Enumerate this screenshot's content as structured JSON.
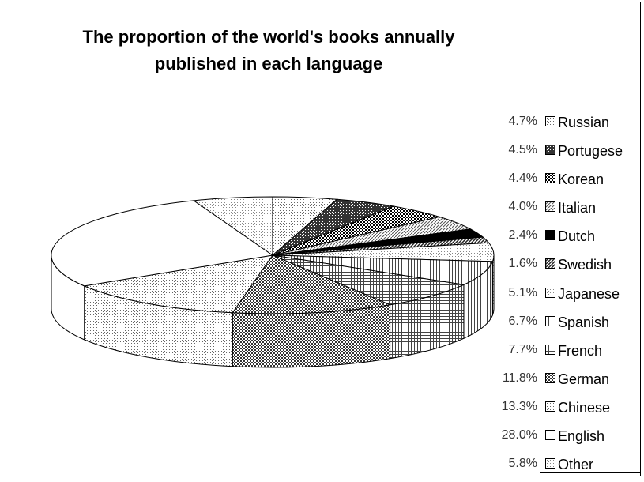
{
  "chart_data": {
    "type": "pie",
    "style": "3d",
    "title": "The proportion of the world's books annually published in each language",
    "title_lines": [
      "The proportion of the world's books annually",
      "published in each language"
    ],
    "legend_position": "right",
    "slices": [
      {
        "label": "Russian",
        "value": 4.7,
        "display": "4.7%",
        "pattern": "dots",
        "color": "#666666"
      },
      {
        "label": "Portugese",
        "value": 4.5,
        "display": "4.5%",
        "pattern": "dense",
        "color": "#333333"
      },
      {
        "label": "Korean",
        "value": 4.4,
        "display": "4.4%",
        "pattern": "check",
        "color": "#000000"
      },
      {
        "label": "Italian",
        "value": 4.0,
        "display": "4.0%",
        "pattern": "diag",
        "color": "#555555"
      },
      {
        "label": "Dutch",
        "value": 2.4,
        "display": "2.4%",
        "pattern": "solid",
        "color": "#000000"
      },
      {
        "label": "Swedish",
        "value": 1.6,
        "display": "1.6%",
        "pattern": "stripe",
        "color": "#222222"
      },
      {
        "label": "Japanese",
        "value": 5.1,
        "display": "5.1%",
        "pattern": "dots",
        "color": "#888888"
      },
      {
        "label": "Spanish",
        "value": 6.7,
        "display": "6.7%",
        "pattern": "vlines",
        "color": "#444444"
      },
      {
        "label": "French",
        "value": 7.7,
        "display": "7.7%",
        "pattern": "hlines",
        "color": "#444444"
      },
      {
        "label": "German",
        "value": 11.8,
        "display": "11.8%",
        "pattern": "check",
        "color": "#333333"
      },
      {
        "label": "Chinese",
        "value": 13.3,
        "display": "13.3%",
        "pattern": "dots",
        "color": "#666666"
      },
      {
        "label": "English",
        "value": 28.0,
        "display": "28.0%",
        "pattern": "none",
        "color": "#ffffff"
      },
      {
        "label": "Other",
        "value": 5.8,
        "display": "5.8%",
        "pattern": "dots",
        "color": "#888888"
      }
    ]
  }
}
